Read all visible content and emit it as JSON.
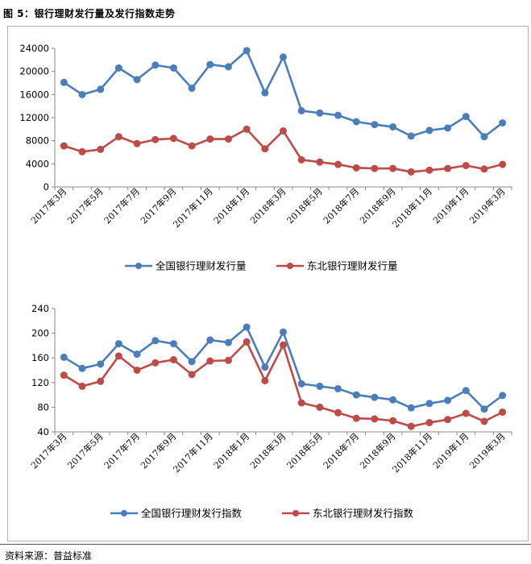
{
  "figure": {
    "title": "图 5：银行理财发行量及发行指数走势",
    "source": "资料来源：普益标准"
  },
  "colors": {
    "blue": "#4a7ebb",
    "red": "#be4b48",
    "axis": "#868686"
  },
  "chart_data": [
    {
      "type": "line",
      "title": "",
      "xlabel": "",
      "ylabel": "",
      "categories": [
        "2017年3月",
        "2017年4月",
        "2017年5月",
        "2017年6月",
        "2017年7月",
        "2017年8月",
        "2017年9月",
        "2017年10月",
        "2017年11月",
        "2017年12月",
        "2018年1月",
        "2018年2月",
        "2018年3月",
        "2018年4月",
        "2018年5月",
        "2018年6月",
        "2018年7月",
        "2018年8月",
        "2018年9月",
        "2018年10月",
        "2018年11月",
        "2018年12月",
        "2019年1月",
        "2019年2月",
        "2019年3月"
      ],
      "tick_labels": [
        "2017年3月",
        "2017年5月",
        "2017年7月",
        "2017年9月",
        "2017年11月",
        "2018年1月",
        "2018年3月",
        "2018年5月",
        "2018年7月",
        "2018年9月",
        "2018年11月",
        "2019年1月",
        "2019年3月"
      ],
      "yticks": [
        "0",
        "4000",
        "8000",
        "12000",
        "16000",
        "20000",
        "24000"
      ],
      "ylim": [
        0,
        24000
      ],
      "grid": false,
      "legend_position": "bottom",
      "series": [
        {
          "name": "全国银行理财发行量",
          "color": "#4a7ebb",
          "values": [
            18100,
            16000,
            16900,
            20600,
            18600,
            21100,
            20600,
            17100,
            21200,
            20800,
            23600,
            16300,
            22500,
            13200,
            12800,
            12400,
            11300,
            10800,
            10400,
            8800,
            9800,
            10200,
            12200,
            8700,
            11100
          ]
        },
        {
          "name": "东北银行理财发行量",
          "color": "#be4b48",
          "values": [
            7100,
            6100,
            6500,
            8700,
            7500,
            8200,
            8400,
            7100,
            8300,
            8300,
            10000,
            6600,
            9700,
            4700,
            4300,
            3900,
            3300,
            3200,
            3200,
            2600,
            2900,
            3200,
            3700,
            3100,
            3900
          ]
        }
      ]
    },
    {
      "type": "line",
      "title": "",
      "xlabel": "",
      "ylabel": "",
      "categories": [
        "2017年3月",
        "2017年4月",
        "2017年5月",
        "2017年6月",
        "2017年7月",
        "2017年8月",
        "2017年9月",
        "2017年10月",
        "2017年11月",
        "2017年12月",
        "2018年1月",
        "2018年2月",
        "2018年3月",
        "2018年4月",
        "2018年5月",
        "2018年6月",
        "2018年7月",
        "2018年8月",
        "2018年9月",
        "2018年10月",
        "2018年11月",
        "2018年12月",
        "2019年1月",
        "2019年2月",
        "2019年3月"
      ],
      "tick_labels": [
        "2017年3月",
        "2017年5月",
        "2017年7月",
        "2017年9月",
        "2017年11月",
        "2018年1月",
        "2018年3月",
        "2018年5月",
        "2018年7月",
        "2018年9月",
        "2018年11月",
        "2019年1月",
        "2019年3月"
      ],
      "yticks": [
        "40",
        "80",
        "120",
        "160",
        "200",
        "240"
      ],
      "ylim": [
        40,
        240
      ],
      "grid": false,
      "legend_position": "bottom",
      "series": [
        {
          "name": "全国银行理财发行指数",
          "color": "#4a7ebb",
          "values": [
            161,
            143,
            150,
            183,
            166,
            188,
            183,
            154,
            189,
            185,
            210,
            145,
            202,
            118,
            114,
            110,
            100,
            96,
            92,
            79,
            86,
            91,
            107,
            77,
            99
          ]
        },
        {
          "name": "东北银行理财发行指数",
          "color": "#be4b48",
          "values": [
            132,
            114,
            122,
            163,
            140,
            152,
            157,
            133,
            155,
            156,
            186,
            123,
            181,
            87,
            80,
            71,
            62,
            61,
            58,
            49,
            55,
            60,
            70,
            57,
            72
          ]
        }
      ]
    }
  ]
}
